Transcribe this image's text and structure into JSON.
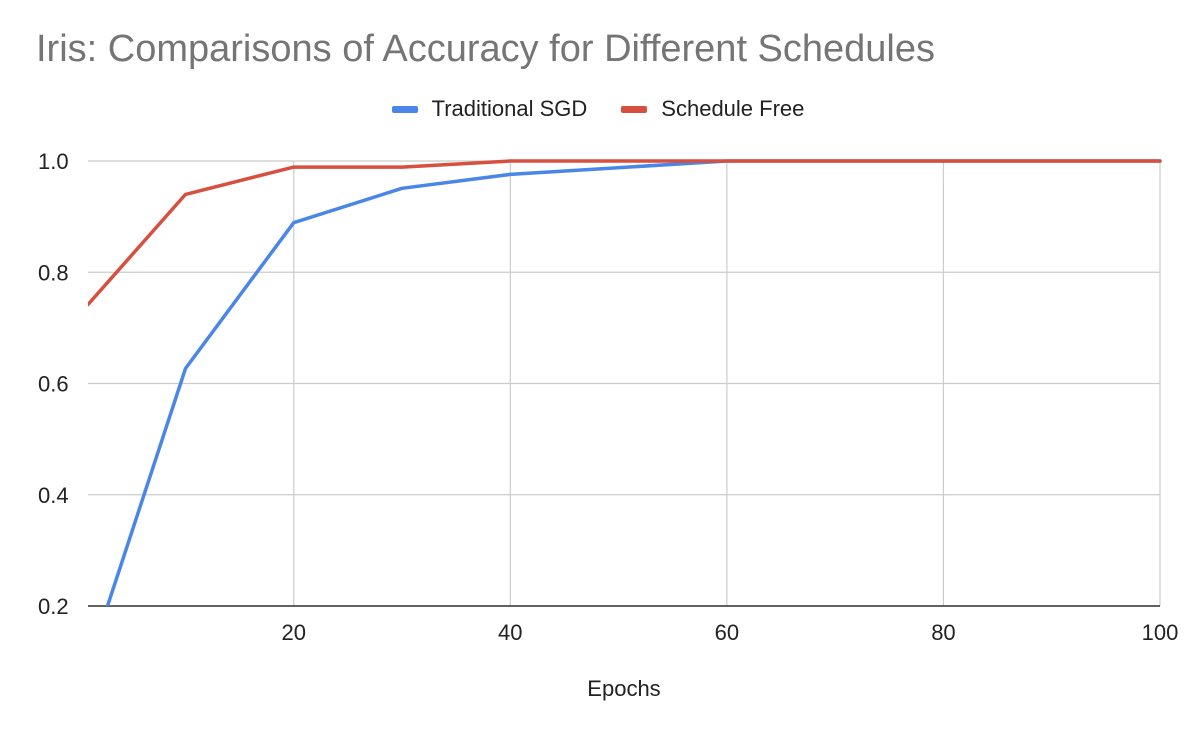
{
  "chart_data": {
    "type": "line",
    "title": "Iris: Comparisons of Accuracy for Different Schedules",
    "xlabel": "Epochs",
    "ylabel": "",
    "xlim": [
      1,
      100
    ],
    "ylim": [
      0.2,
      1.0
    ],
    "x_ticks": [
      "20",
      "40",
      "60",
      "80",
      "100"
    ],
    "x_tick_values": [
      20,
      40,
      60,
      80,
      100
    ],
    "y_ticks": [
      "0.2",
      "0.4",
      "0.6",
      "0.8",
      "1.0"
    ],
    "y_tick_values": [
      0.2,
      0.4,
      0.6,
      0.8,
      1.0
    ],
    "grid": true,
    "legend_position": "top-center",
    "series": [
      {
        "name": "Traditional SGD",
        "color": "#4a86e8",
        "x": [
          2.8,
          10,
          20,
          30,
          40,
          60,
          100
        ],
        "y": [
          0.2,
          0.627,
          0.889,
          0.951,
          0.976,
          1.0,
          1.0
        ]
      },
      {
        "name": "Schedule Free",
        "color": "#d64f3f",
        "x": [
          1,
          10,
          20,
          30,
          40,
          60,
          100
        ],
        "y": [
          0.742,
          0.94,
          0.989,
          0.989,
          1.0,
          1.0,
          1.0
        ]
      }
    ]
  }
}
